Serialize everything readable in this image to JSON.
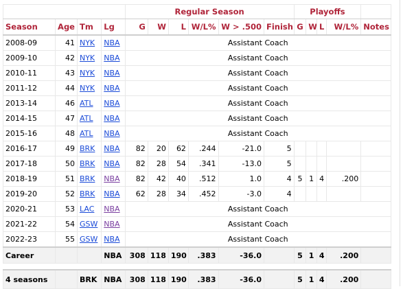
{
  "groups": {
    "regular": "Regular Season",
    "playoffs": "Playoffs"
  },
  "headers": {
    "season": "Season",
    "age": "Age",
    "tm": "Tm",
    "lg": "Lg",
    "g": "G",
    "w": "W",
    "l": "L",
    "wl": "W/L%",
    "w500": "W > .500",
    "finish": "Finish",
    "pg": "G",
    "pw": "W",
    "pl": "L",
    "pwl": "W/L%",
    "notes": "Notes"
  },
  "rows": [
    {
      "season": "2008-09",
      "age": "41",
      "tm": "NYK",
      "lg": "NBA",
      "role": "Assistant Coach"
    },
    {
      "season": "2009-10",
      "age": "42",
      "tm": "NYK",
      "lg": "NBA",
      "role": "Assistant Coach"
    },
    {
      "season": "2010-11",
      "age": "43",
      "tm": "NYK",
      "lg": "NBA",
      "role": "Assistant Coach"
    },
    {
      "season": "2011-12",
      "age": "44",
      "tm": "NYK",
      "lg": "NBA",
      "role": "Assistant Coach"
    },
    {
      "season": "2013-14",
      "age": "46",
      "tm": "ATL",
      "lg": "NBA",
      "role": "Assistant Coach"
    },
    {
      "season": "2014-15",
      "age": "47",
      "tm": "ATL",
      "lg": "NBA",
      "role": "Assistant Coach"
    },
    {
      "season": "2015-16",
      "age": "48",
      "tm": "ATL",
      "lg": "NBA",
      "role": "Assistant Coach"
    },
    {
      "season": "2016-17",
      "age": "49",
      "tm": "BRK",
      "lg": "NBA",
      "g": "82",
      "w": "20",
      "l": "62",
      "wl": ".244",
      "w500": "-21.0",
      "finish": "5",
      "pg": "",
      "pw": "",
      "pl": "",
      "pwl": "",
      "notes": ""
    },
    {
      "season": "2017-18",
      "age": "50",
      "tm": "BRK",
      "lg": "NBA",
      "g": "82",
      "w": "28",
      "l": "54",
      "wl": ".341",
      "w500": "-13.0",
      "finish": "5",
      "pg": "",
      "pw": "",
      "pl": "",
      "pwl": "",
      "notes": ""
    },
    {
      "season": "2018-19",
      "age": "51",
      "tm": "BRK",
      "lg": "NBA",
      "g": "82",
      "w": "42",
      "l": "40",
      "wl": ".512",
      "w500": "1.0",
      "finish": "4",
      "pg": "5",
      "pw": "1",
      "pl": "4",
      "pwl": ".200",
      "notes": ""
    },
    {
      "season": "2019-20",
      "age": "52",
      "tm": "BRK",
      "lg": "NBA",
      "g": "62",
      "w": "28",
      "l": "34",
      "wl": ".452",
      "w500": "-3.0",
      "finish": "4",
      "pg": "",
      "pw": "",
      "pl": "",
      "pwl": "",
      "notes": ""
    },
    {
      "season": "2020-21",
      "age": "53",
      "tm": "LAC",
      "lg": "NBA",
      "role": "Assistant Coach"
    },
    {
      "season": "2021-22",
      "age": "54",
      "tm": "GSW",
      "lg": "NBA",
      "role": "Assistant Coach"
    },
    {
      "season": "2022-23",
      "age": "55",
      "tm": "GSW",
      "lg": "NBA",
      "role": "Assistant Coach"
    }
  ],
  "career": {
    "label": "Career",
    "lg": "NBA",
    "g": "308",
    "w": "118",
    "l": "190",
    "wl": ".383",
    "w500": "-36.0",
    "pg": "5",
    "pw": "1",
    "pl": "4",
    "pwl": ".200"
  },
  "team_total": {
    "label": "4 seasons",
    "tm": "BRK",
    "lg": "NBA",
    "g": "308",
    "w": "118",
    "l": "190",
    "wl": ".383",
    "w500": "-36.0",
    "pg": "5",
    "pw": "1",
    "pl": "4",
    "pwl": ".200"
  },
  "colors": {
    "header": "#b0253a",
    "link": "#1a4ad8",
    "visited_link": "#7a3fa0"
  }
}
